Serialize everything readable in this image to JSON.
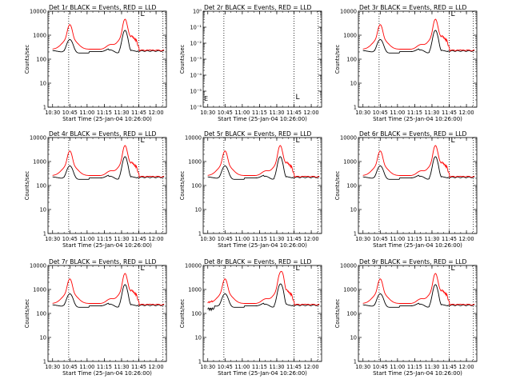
{
  "chart_data": [
    {
      "type": "line",
      "title": "Det 1r BLACK = Events, RED = LLD",
      "xlabel": "Start Time (25-Jan-04 10:26:00)",
      "ylabel": "Counts/sec",
      "yscale": "log",
      "ylim": [
        1,
        10000
      ],
      "xticks": [
        "10:30",
        "10:45",
        "11:00",
        "11:15",
        "11:30",
        "11:45",
        "12:00"
      ],
      "yticks": [
        "1",
        "10",
        "100",
        "1000",
        "10000"
      ],
      "marker_lines": [
        "10:44",
        "11:45"
      ],
      "corner_glyph": "L",
      "profile": "normal",
      "series": [
        {
          "name": "Events",
          "color": "#000000"
        },
        {
          "name": "LLD",
          "color": "#ff0000"
        }
      ]
    },
    {
      "type": "line",
      "title": "Det 2r BLACK = Events, RED = LLD",
      "xlabel": "Start Time (25-Jan-04 10:26:00)",
      "ylabel": "Counts/sec",
      "yscale": "log",
      "ylim": [
        1e-06,
        1
      ],
      "xticks": [
        "10:30",
        "10:45",
        "11:00",
        "11:15",
        "11:30",
        "11:45",
        "12:00"
      ],
      "yticks": [
        "10⁻⁶",
        "10⁻⁵",
        "10⁻⁴",
        "10⁻³",
        "10⁻²",
        "10⁻¹",
        "10⁰"
      ],
      "marker_lines": [
        "10:44",
        "11:45"
      ],
      "corner_glyph": "L",
      "profile": "empty",
      "series": [
        {
          "name": "Events",
          "color": "#000000"
        },
        {
          "name": "LLD",
          "color": "#ff0000"
        }
      ]
    },
    {
      "type": "line",
      "title": "Det 3r BLACK = Events, RED = LLD",
      "xlabel": "Start Time (25-Jan-04 10:26:00)",
      "ylabel": "Counts/sec",
      "yscale": "log",
      "ylim": [
        1,
        10000
      ],
      "xticks": [
        "10:30",
        "10:45",
        "11:00",
        "11:15",
        "11:30",
        "11:45",
        "12:00"
      ],
      "yticks": [
        "1",
        "10",
        "100",
        "1000",
        "10000"
      ],
      "marker_lines": [
        "10:44",
        "11:45"
      ],
      "corner_glyph": "L",
      "profile": "normal",
      "series": [
        {
          "name": "Events",
          "color": "#000000"
        },
        {
          "name": "LLD",
          "color": "#ff0000"
        }
      ]
    },
    {
      "type": "line",
      "title": "Det 4r BLACK = Events, RED = LLD",
      "xlabel": "Start Time (25-Jan-04 10:26:00)",
      "ylabel": "Counts/sec",
      "yscale": "log",
      "ylim": [
        1,
        10000
      ],
      "xticks": [
        "10:30",
        "10:45",
        "11:00",
        "11:15",
        "11:30",
        "11:45",
        "12:00"
      ],
      "yticks": [
        "1",
        "10",
        "100",
        "1000",
        "10000"
      ],
      "marker_lines": [
        "10:44",
        "11:45"
      ],
      "corner_glyph": "L",
      "profile": "normal",
      "series": [
        {
          "name": "Events",
          "color": "#000000"
        },
        {
          "name": "LLD",
          "color": "#ff0000"
        }
      ]
    },
    {
      "type": "line",
      "title": "Det 5r BLACK = Events, RED = LLD",
      "xlabel": "Start Time (25-Jan-04 10:26:00)",
      "ylabel": "Counts/sec",
      "yscale": "log",
      "ylim": [
        1,
        10000
      ],
      "xticks": [
        "10:30",
        "10:45",
        "11:00",
        "11:15",
        "11:30",
        "11:45",
        "12:00"
      ],
      "yticks": [
        "1",
        "10",
        "100",
        "1000",
        "10000"
      ],
      "marker_lines": [
        "10:44",
        "11:45"
      ],
      "corner_glyph": "L",
      "profile": "normal",
      "series": [
        {
          "name": "Events",
          "color": "#000000"
        },
        {
          "name": "LLD",
          "color": "#ff0000"
        }
      ]
    },
    {
      "type": "line",
      "title": "Det 6r BLACK = Events, RED = LLD",
      "xlabel": "Start Time (25-Jan-04 10:26:00)",
      "ylabel": "Counts/sec",
      "yscale": "log",
      "ylim": [
        1,
        10000
      ],
      "xticks": [
        "10:30",
        "10:45",
        "11:00",
        "11:15",
        "11:30",
        "11:45",
        "12:00"
      ],
      "yticks": [
        "1",
        "10",
        "100",
        "1000",
        "10000"
      ],
      "marker_lines": [
        "10:44",
        "11:45"
      ],
      "corner_glyph": "L",
      "profile": "normal",
      "series": [
        {
          "name": "Events",
          "color": "#000000"
        },
        {
          "name": "LLD",
          "color": "#ff0000"
        }
      ]
    },
    {
      "type": "line",
      "title": "Det 7r BLACK = Events, RED = LLD",
      "xlabel": "Start Time (25-Jan-04 10:26:00)",
      "ylabel": "Counts/sec",
      "yscale": "log",
      "ylim": [
        1,
        10000
      ],
      "xticks": [
        "10:30",
        "10:45",
        "11:00",
        "11:15",
        "11:30",
        "11:45",
        "12:00"
      ],
      "yticks": [
        "1",
        "10",
        "100",
        "1000",
        "10000"
      ],
      "marker_lines": [
        "10:44",
        "11:45"
      ],
      "corner_glyph": "L",
      "profile": "normal",
      "series": [
        {
          "name": "Events",
          "color": "#000000"
        },
        {
          "name": "LLD",
          "color": "#ff0000"
        }
      ]
    },
    {
      "type": "line",
      "title": "Det 8r BLACK = Events, RED = LLD",
      "xlabel": "Start Time (25-Jan-04 10:26:00)",
      "ylabel": "Counts/sec",
      "yscale": "log",
      "ylim": [
        1,
        10000
      ],
      "xticks": [
        "10:30",
        "10:45",
        "11:00",
        "11:15",
        "11:30",
        "11:45",
        "12:00"
      ],
      "yticks": [
        "1",
        "10",
        "100",
        "1000",
        "10000"
      ],
      "marker_lines": [
        "10:44",
        "11:45"
      ],
      "corner_glyph": "L",
      "profile": "det8",
      "series": [
        {
          "name": "Events",
          "color": "#000000"
        },
        {
          "name": "LLD",
          "color": "#ff0000"
        }
      ]
    },
    {
      "type": "line",
      "title": "Det 9r BLACK = Events, RED = LLD",
      "xlabel": "Start Time (25-Jan-04 10:26:00)",
      "ylabel": "Counts/sec",
      "yscale": "log",
      "ylim": [
        1,
        10000
      ],
      "xticks": [
        "10:30",
        "10:45",
        "11:00",
        "11:15",
        "11:30",
        "11:45",
        "12:00"
      ],
      "yticks": [
        "1",
        "10",
        "100",
        "1000",
        "10000"
      ],
      "marker_lines": [
        "10:44",
        "11:45"
      ],
      "corner_glyph": "L",
      "profile": "normal",
      "series": [
        {
          "name": "Events",
          "color": "#000000"
        },
        {
          "name": "LLD",
          "color": "#ff0000"
        }
      ]
    }
  ]
}
